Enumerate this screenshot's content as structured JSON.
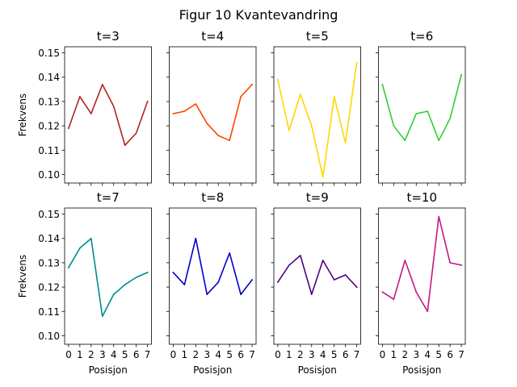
{
  "title": "Figur 10 Kvantevandring",
  "chart_data": {
    "type": "line",
    "ylabel": "Frekvens",
    "xlabel": "Posisjon",
    "ylim": [
      0.0965,
      0.1525
    ],
    "xlim": [
      -0.35,
      7.35
    ],
    "yticks": [
      0.1,
      0.11,
      0.12,
      0.13,
      0.14,
      0.15
    ],
    "ytick_labels": [
      "0.10",
      "0.11",
      "0.12",
      "0.13",
      "0.14",
      "0.15"
    ],
    "xticks": [
      0,
      1,
      2,
      3,
      4,
      5,
      6,
      7
    ],
    "xtick_labels": [
      "0",
      "1",
      "2",
      "3",
      "4",
      "5",
      "6",
      "7"
    ],
    "grid": false,
    "panels": [
      {
        "title": "t=3",
        "color": "#b22222",
        "values": [
          0.119,
          0.132,
          0.125,
          0.137,
          0.128,
          0.112,
          0.117,
          0.13
        ]
      },
      {
        "title": "t=4",
        "color": "#ff4500",
        "values": [
          0.125,
          0.126,
          0.129,
          0.121,
          0.116,
          0.114,
          0.132,
          0.137
        ]
      },
      {
        "title": "t=5",
        "color": "#ffd700",
        "values": [
          0.139,
          0.118,
          0.133,
          0.12,
          0.099,
          0.132,
          0.113,
          0.146
        ]
      },
      {
        "title": "t=6",
        "color": "#32cd32",
        "values": [
          0.137,
          0.12,
          0.114,
          0.125,
          0.126,
          0.114,
          0.123,
          0.141
        ]
      },
      {
        "title": "t=7",
        "color": "#008b8b",
        "values": [
          0.128,
          0.136,
          0.14,
          0.108,
          0.117,
          0.121,
          0.124,
          0.126
        ]
      },
      {
        "title": "t=8",
        "color": "#0000cd",
        "values": [
          0.126,
          0.121,
          0.14,
          0.117,
          0.122,
          0.134,
          0.117,
          0.123
        ]
      },
      {
        "title": "t=9",
        "color": "#4b0082",
        "values": [
          0.122,
          0.129,
          0.133,
          0.117,
          0.131,
          0.123,
          0.125,
          0.12
        ]
      },
      {
        "title": "t=10",
        "color": "#c71585",
        "values": [
          0.118,
          0.115,
          0.131,
          0.118,
          0.11,
          0.149,
          0.13,
          0.129
        ]
      }
    ]
  }
}
